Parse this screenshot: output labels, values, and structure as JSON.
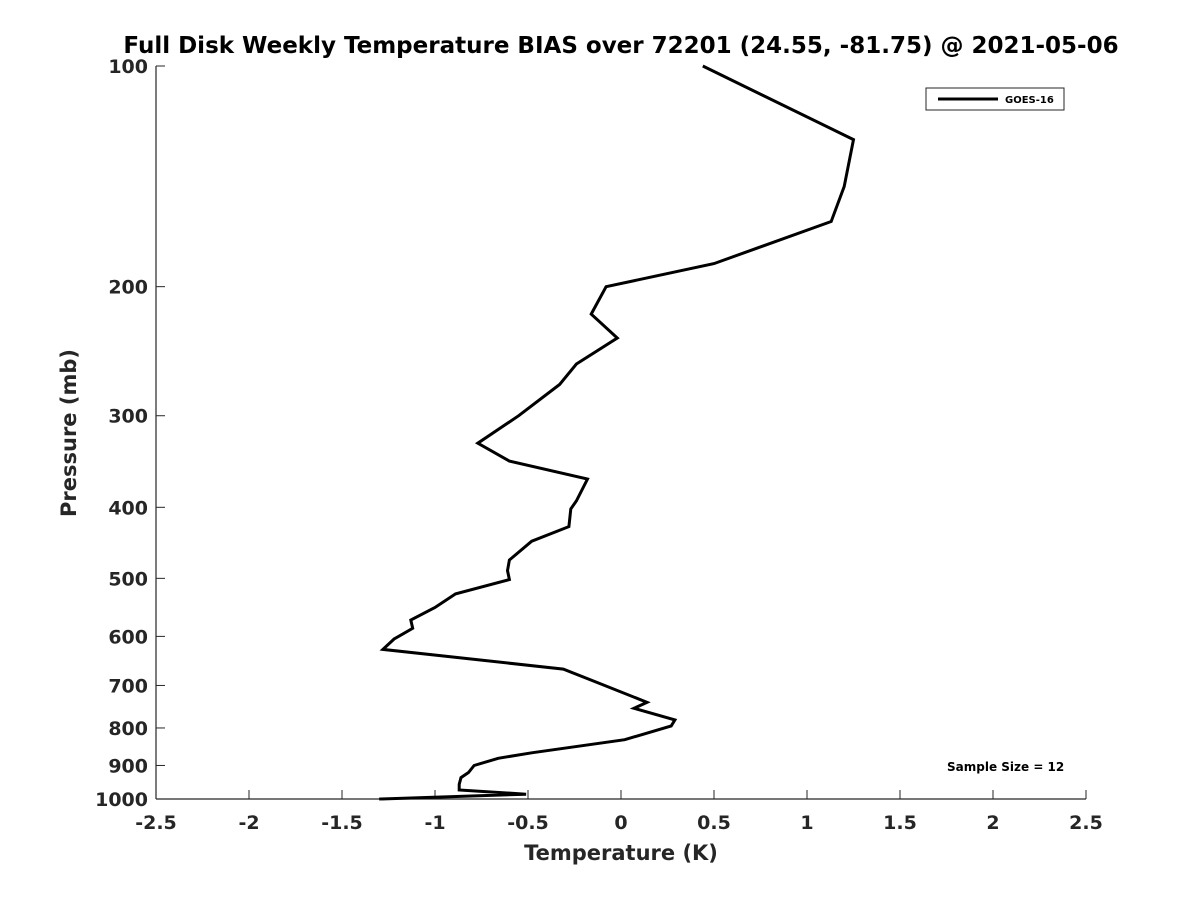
{
  "chart_data": {
    "type": "line",
    "title": "Full Disk Weekly Temperature BIAS over 72201 (24.55, -81.75) @ 2021-05-06",
    "xlabel": "Temperature (K)",
    "ylabel": "Pressure (mb)",
    "xlim": [
      -2.5,
      2.5
    ],
    "ylim": [
      100,
      1000
    ],
    "y_scale": "log",
    "y_reversed": true,
    "x_ticks": [
      -2.5,
      -2,
      -1.5,
      -1,
      -0.5,
      0,
      0.5,
      1,
      1.5,
      2,
      2.5
    ],
    "x_tick_labels": [
      "-2.5",
      "-2",
      "-1.5",
      "-1",
      "-0.5",
      "0",
      "0.5",
      "1",
      "1.5",
      "2",
      "2.5"
    ],
    "y_ticks": [
      100,
      200,
      300,
      400,
      500,
      600,
      700,
      800,
      900,
      1000
    ],
    "y_tick_labels": [
      "100",
      "200",
      "300",
      "400",
      "500",
      "600",
      "700",
      "800",
      "900",
      "1000"
    ],
    "grid": false,
    "legend_position": "top-right",
    "annotation": "Sample Size = 12",
    "line_color": "#000000",
    "series": [
      {
        "name": "GOES-16",
        "points": [
          [
            0.44,
            100
          ],
          [
            1.25,
            126
          ],
          [
            1.2,
            146
          ],
          [
            1.13,
            163
          ],
          [
            0.5,
            186
          ],
          [
            -0.08,
            200
          ],
          [
            -0.16,
            218
          ],
          [
            -0.02,
            235
          ],
          [
            -0.24,
            255
          ],
          [
            -0.33,
            272
          ],
          [
            -0.55,
            300
          ],
          [
            -0.77,
            327
          ],
          [
            -0.6,
            346
          ],
          [
            -0.18,
            366
          ],
          [
            -0.24,
            392
          ],
          [
            -0.27,
            402
          ],
          [
            -0.28,
            425
          ],
          [
            -0.48,
            445
          ],
          [
            -0.6,
            472
          ],
          [
            -0.61,
            488
          ],
          [
            -0.6,
            502
          ],
          [
            -0.89,
            525
          ],
          [
            -1.0,
            548
          ],
          [
            -1.13,
            570
          ],
          [
            -1.12,
            585
          ],
          [
            -1.22,
            605
          ],
          [
            -1.28,
            625
          ],
          [
            -0.31,
            665
          ],
          [
            -0.15,
            690
          ],
          [
            0.14,
            738
          ],
          [
            0.07,
            752
          ],
          [
            0.29,
            780
          ],
          [
            0.27,
            795
          ],
          [
            0.02,
            830
          ],
          [
            -0.48,
            865
          ],
          [
            -0.66,
            880
          ],
          [
            -0.79,
            900
          ],
          [
            -0.82,
            920
          ],
          [
            -0.86,
            935
          ],
          [
            -0.87,
            955
          ],
          [
            -0.87,
            972
          ],
          [
            -0.51,
            985
          ],
          [
            -1.3,
            1000
          ]
        ]
      }
    ]
  }
}
